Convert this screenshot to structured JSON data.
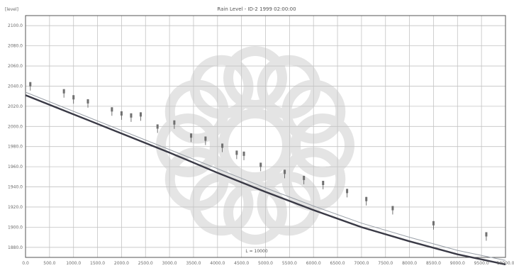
{
  "chart_data": {
    "type": "line",
    "title": "Rain Level - ID-2 1999 02:00:00",
    "ylabel_unit": "[level]",
    "xlabel": "",
    "x_ticks": [
      "0.0",
      "500.0",
      "1000.0",
      "1500.0",
      "2000.0",
      "2500.0",
      "3000.0",
      "3500.0",
      "4000.0",
      "4500.0",
      "5000.0",
      "5500.0",
      "6000.0",
      "6500.0",
      "7000.0",
      "7500.0",
      "8000.0",
      "8500.0",
      "9000.0",
      "9500.0",
      "10000.0"
    ],
    "y_ticks": [
      "1880.0",
      "1900.0",
      "1920.0",
      "1940.0",
      "1960.0",
      "1980.0",
      "2000.0",
      "2020.0",
      "2040.0",
      "2060.0",
      "2080.0",
      "2100.0"
    ],
    "xlim": [
      0,
      10000
    ],
    "ylim": [
      1870,
      2110
    ],
    "grid": true,
    "annotation": "L = 10000",
    "series": [
      {
        "name": "",
        "style": "thick-dark",
        "x": [
          0,
          1000,
          2000,
          3000,
          4000,
          5000,
          6000,
          7000,
          8000,
          9000,
          10000
        ],
        "y": [
          2031,
          2012,
          1993,
          1974,
          1954,
          1935,
          1917,
          1900,
          1886,
          1873,
          1863
        ]
      },
      {
        "name": "",
        "style": "thin-light",
        "x": [
          0,
          1000,
          2000,
          3000,
          4000,
          5000,
          6000,
          7000,
          8000,
          9000,
          10000
        ],
        "y": [
          2034,
          2015,
          1996,
          1977,
          1958,
          1939,
          1921,
          1904,
          1890,
          1877,
          1867
        ]
      }
    ],
    "stations": {
      "x": [
        100,
        800,
        1000,
        1300,
        1800,
        2000,
        2200,
        2400,
        2750,
        3100,
        3450,
        3750,
        4100,
        4400,
        4550,
        4900,
        5400,
        5800,
        6200,
        6700,
        7100,
        7650,
        8500,
        9600
      ],
      "top": [
        2044,
        2037,
        2031,
        2027,
        2019,
        2015,
        2013,
        2014,
        2002,
        2006,
        1993,
        1990,
        1983,
        1976,
        1975,
        1964,
        1957,
        1951,
        1946,
        1938,
        1930,
        1921,
        1906,
        1895
      ]
    }
  }
}
